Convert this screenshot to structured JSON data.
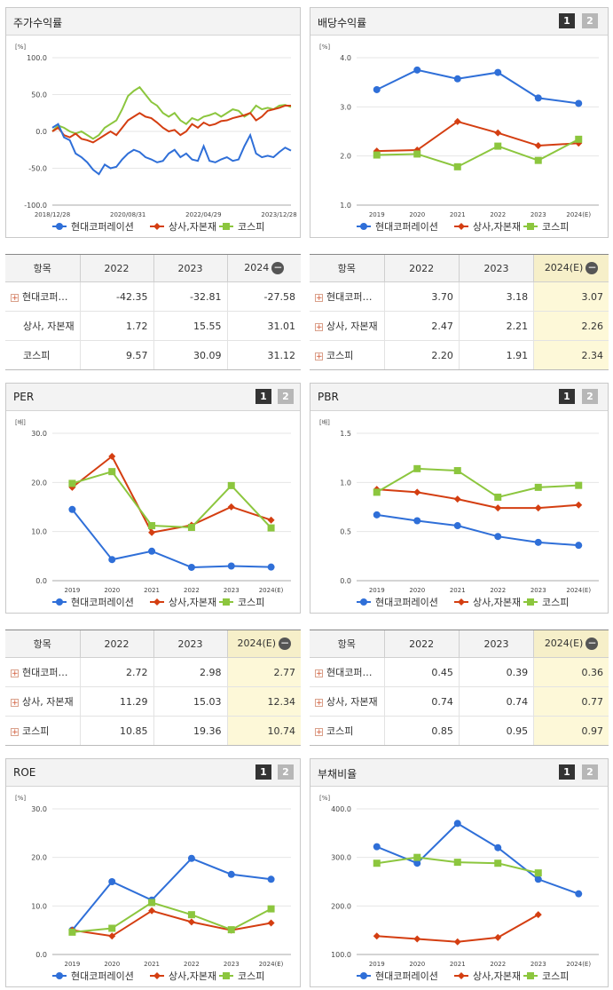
{
  "legend": [
    "현대코퍼레이션",
    "상사,자본재",
    "코스피"
  ],
  "colors": {
    "s1": "#2f6fd8",
    "s2": "#d43e11",
    "s3": "#8cc63e"
  },
  "page_buttons": [
    "1",
    "2"
  ],
  "chart_data": [
    {
      "id": "price",
      "title": "주가수익률",
      "type": "line",
      "unit": "[%]",
      "ylim": [
        -100,
        100
      ],
      "yticks": [
        "100.0",
        "50.0",
        "0.0",
        "-50.0",
        "-100.0"
      ],
      "xticks": [
        "2018/12/28",
        "2020/08/31",
        "2022/04/29",
        "2023/12/28"
      ],
      "series": [
        {
          "name": "현대코퍼레이션",
          "values": [
            5,
            10,
            -8,
            -12,
            -30,
            -35,
            -42,
            -52,
            -58,
            -45,
            -50,
            -48,
            -38,
            -30,
            -25,
            -28,
            -35,
            -38,
            -42,
            -40,
            -30,
            -25,
            -35,
            -30,
            -38,
            -40,
            -20,
            -40,
            -42,
            -38,
            -35,
            -40,
            -38,
            -20,
            -5,
            -30,
            -35,
            -33,
            -35,
            -28,
            -22,
            -26
          ]
        },
        {
          "name": "상사,자본재",
          "values": [
            0,
            5,
            -5,
            -8,
            -3,
            -10,
            -12,
            -15,
            -10,
            -5,
            0,
            -5,
            5,
            15,
            20,
            25,
            20,
            18,
            12,
            5,
            0,
            2,
            -5,
            0,
            10,
            5,
            12,
            8,
            10,
            14,
            15,
            18,
            20,
            22,
            25,
            15,
            20,
            28,
            30,
            32,
            35,
            35
          ]
        },
        {
          "name": "코스피",
          "values": [
            0,
            8,
            5,
            0,
            -3,
            0,
            -5,
            -10,
            -5,
            5,
            10,
            15,
            30,
            48,
            55,
            60,
            50,
            40,
            35,
            25,
            20,
            25,
            15,
            10,
            18,
            15,
            20,
            22,
            25,
            20,
            25,
            30,
            28,
            20,
            25,
            35,
            30,
            32,
            30,
            35,
            36,
            33
          ]
        }
      ]
    },
    {
      "id": "dividend",
      "title": "배당수익률",
      "type": "line",
      "unit": "[%]",
      "ylim": [
        1.0,
        4.0
      ],
      "yticks": [
        "4.0",
        "3.0",
        "2.0",
        "1.0"
      ],
      "categories": [
        "2019",
        "2020",
        "2021",
        "2022",
        "2023",
        "2024(E)"
      ],
      "series": [
        {
          "name": "현대코퍼레이션",
          "values": [
            3.35,
            3.75,
            3.57,
            3.7,
            3.18,
            3.07
          ]
        },
        {
          "name": "상사,자본재",
          "values": [
            2.1,
            2.12,
            2.7,
            2.47,
            2.21,
            2.26
          ]
        },
        {
          "name": "코스피",
          "values": [
            2.02,
            2.04,
            1.78,
            2.2,
            1.91,
            2.34
          ]
        }
      ]
    },
    {
      "id": "per",
      "title": "PER",
      "type": "line",
      "unit": "[배]",
      "ylim": [
        0,
        30
      ],
      "yticks": [
        "30.0",
        "20.0",
        "10.0",
        "0.0"
      ],
      "categories": [
        "2019",
        "2020",
        "2021",
        "2022",
        "2023",
        "2024(E)"
      ],
      "series": [
        {
          "name": "현대코퍼레이션",
          "values": [
            14.5,
            4.3,
            6.0,
            2.72,
            2.98,
            2.77
          ]
        },
        {
          "name": "상사,자본재",
          "values": [
            19.0,
            25.3,
            9.8,
            11.29,
            15.03,
            12.34
          ]
        },
        {
          "name": "코스피",
          "values": [
            19.8,
            22.2,
            11.2,
            10.85,
            19.36,
            10.74
          ]
        }
      ]
    },
    {
      "id": "pbr",
      "title": "PBR",
      "type": "line",
      "unit": "[배]",
      "ylim": [
        0,
        1.5
      ],
      "yticks": [
        "1.5",
        "1.0",
        "0.5",
        "0.0"
      ],
      "categories": [
        "2019",
        "2020",
        "2021",
        "2022",
        "2023",
        "2024(E)"
      ],
      "series": [
        {
          "name": "현대코퍼레이션",
          "values": [
            0.67,
            0.61,
            0.56,
            0.45,
            0.39,
            0.36
          ]
        },
        {
          "name": "상사,자본재",
          "values": [
            0.93,
            0.9,
            0.83,
            0.74,
            0.74,
            0.77
          ]
        },
        {
          "name": "코스피",
          "values": [
            0.9,
            1.14,
            1.12,
            0.85,
            0.95,
            0.97
          ]
        }
      ]
    },
    {
      "id": "roe",
      "title": "ROE",
      "type": "line",
      "unit": "[%]",
      "ylim": [
        0,
        30
      ],
      "yticks": [
        "30.0",
        "20.0",
        "10.0",
        "0.0"
      ],
      "categories": [
        "2019",
        "2020",
        "2021",
        "2022",
        "2023",
        "2024(E)"
      ],
      "series": [
        {
          "name": "현대코퍼레이션",
          "values": [
            5.0,
            15.0,
            11.2,
            19.8,
            16.5,
            15.5
          ]
        },
        {
          "name": "상사,자본재",
          "values": [
            5.0,
            3.8,
            9.0,
            6.7,
            5.0,
            6.5
          ]
        },
        {
          "name": "코스피",
          "values": [
            4.6,
            5.4,
            10.7,
            8.2,
            5.1,
            9.4
          ]
        }
      ]
    },
    {
      "id": "debt",
      "title": "부채비율",
      "type": "line",
      "unit": "[%]",
      "ylim": [
        100,
        400
      ],
      "yticks": [
        "400.0",
        "300.0",
        "200.0",
        "100.0"
      ],
      "categories": [
        "2019",
        "2020",
        "2021",
        "2022",
        "2023",
        "2024(E)"
      ],
      "series": [
        {
          "name": "현대코퍼레이션",
          "values": [
            322,
            288,
            370,
            320,
            255,
            225
          ]
        },
        {
          "name": "상사,자본재",
          "values": [
            138,
            132,
            126,
            135,
            182,
            null
          ]
        },
        {
          "name": "코스피",
          "values": [
            288,
            300,
            290,
            288,
            268,
            null
          ]
        }
      ]
    }
  ],
  "tables": {
    "t_price": {
      "headers": [
        "항목",
        "2022",
        "2023",
        "2024"
      ],
      "rows": [
        {
          "name": "현대코퍼…",
          "plus": true,
          "v": [
            "-42.35",
            "-32.81",
            "-27.58"
          ]
        },
        {
          "name": "상사, 자본재",
          "plus": false,
          "v": [
            "1.72",
            "15.55",
            "31.01"
          ]
        },
        {
          "name": "코스피",
          "plus": false,
          "v": [
            "9.57",
            "30.09",
            "31.12"
          ]
        }
      ]
    },
    "t_div": {
      "headers": [
        "항목",
        "2022",
        "2023",
        "2024(E)"
      ],
      "rows": [
        {
          "name": "현대코퍼…",
          "plus": true,
          "v": [
            "3.70",
            "3.18",
            "3.07"
          ]
        },
        {
          "name": "상사, 자본재",
          "plus": true,
          "v": [
            "2.47",
            "2.21",
            "2.26"
          ]
        },
        {
          "name": "코스피",
          "plus": true,
          "v": [
            "2.20",
            "1.91",
            "2.34"
          ]
        }
      ]
    },
    "t_per": {
      "headers": [
        "항목",
        "2022",
        "2023",
        "2024(E)"
      ],
      "rows": [
        {
          "name": "현대코퍼…",
          "plus": true,
          "v": [
            "2.72",
            "2.98",
            "2.77"
          ]
        },
        {
          "name": "상사, 자본재",
          "plus": true,
          "v": [
            "11.29",
            "15.03",
            "12.34"
          ]
        },
        {
          "name": "코스피",
          "plus": true,
          "v": [
            "10.85",
            "19.36",
            "10.74"
          ]
        }
      ]
    },
    "t_pbr": {
      "headers": [
        "항목",
        "2022",
        "2023",
        "2024(E)"
      ],
      "rows": [
        {
          "name": "현대코퍼…",
          "plus": true,
          "v": [
            "0.45",
            "0.39",
            "0.36"
          ]
        },
        {
          "name": "상사, 자본재",
          "plus": true,
          "v": [
            "0.74",
            "0.74",
            "0.77"
          ]
        },
        {
          "name": "코스피",
          "plus": true,
          "v": [
            "0.85",
            "0.95",
            "0.97"
          ]
        }
      ]
    }
  }
}
